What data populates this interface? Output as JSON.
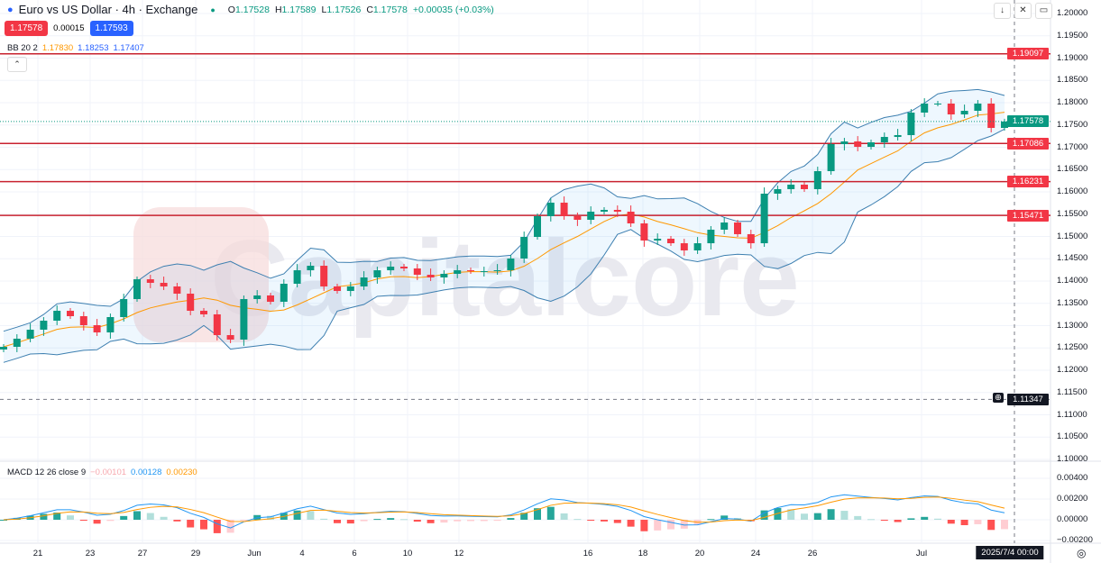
{
  "header": {
    "title": "Euro vs US Dollar · 4h · Exchange",
    "open_label": "O",
    "open": "1.17528",
    "high_label": "H",
    "high": "1.17589",
    "low_label": "L",
    "low": "1.17526",
    "close_label": "C",
    "close": "1.17578",
    "change": "+0.00035 (+0.03%)",
    "sell_price": "1.17578",
    "spread": "0.00015",
    "buy_price": "1.17593"
  },
  "bb_legend": {
    "name": "BB 20 2",
    "basis": "1.17830",
    "upper": "1.18253",
    "lower": "1.17407"
  },
  "macd_legend": {
    "name": "MACD 12 26 close 9",
    "histogram": "−0.00101",
    "macd": "0.00128",
    "signal": "0.00230"
  },
  "colors": {
    "up": "#089981",
    "down": "#f23645",
    "band": "#2962ff",
    "basis": "#ff9800",
    "level": "#c8222f"
  },
  "watermark": "Capitalcore",
  "chart_data": {
    "type": "candlestick",
    "price_axis": {
      "ylim": [
        1.1,
        1.2
      ],
      "ticks": [
        "1.20000",
        "1.19500",
        "1.19000",
        "1.18500",
        "1.18000",
        "1.17500",
        "1.17000",
        "1.16500",
        "1.16000",
        "1.15500",
        "1.15000",
        "1.14500",
        "1.14000",
        "1.13500",
        "1.13000",
        "1.12500",
        "1.12000",
        "1.11500",
        "1.11000",
        "1.10500",
        "1.10000"
      ]
    },
    "macd_axis": {
      "ylim": [
        -0.002,
        0.005
      ],
      "ticks": [
        "0.00400",
        "0.00200",
        "0.00000",
        "−0.00200"
      ]
    },
    "time_labels": [
      "21",
      "23",
      "27",
      "29",
      "Jun",
      "4",
      "6",
      "10",
      "12",
      "16",
      "18",
      "20",
      "24",
      "26",
      "Jul"
    ],
    "crosshair_time": "2025/7/4   00:00",
    "current_price": "1.17578",
    "crosshair_price": "1.11347",
    "levels": [
      "1.19097",
      "1.17086",
      "1.16231",
      "1.15471"
    ],
    "closes": [
      1.12525,
      1.12707,
      1.12909,
      1.13111,
      1.13333,
      1.13212,
      1.1301,
      1.12848,
      1.13192,
      1.13596,
      1.1404,
      1.1396,
      1.13879,
      1.13717,
      1.13333,
      1.13253,
      1.12788,
      1.12687,
      1.13596,
      1.13677,
      1.13535,
      1.13939,
      1.14242,
      1.14343,
      1.13879,
      1.13778,
      1.13879,
      1.14081,
      1.14242,
      1.14323,
      1.14283,
      1.14141,
      1.14081,
      1.14162,
      1.14242,
      1.14222,
      1.14222,
      1.14242,
      1.14505,
      1.1499,
      1.15455,
      1.15758,
      1.15455,
      1.15374,
      1.15556,
      1.15596,
      1.15556,
      1.15293,
      1.14909,
      1.14949,
      1.14848,
      1.14687,
      1.14848,
      1.15152,
      1.15313,
      1.15051,
      1.14848,
      1.1596,
      1.16061,
      1.16162,
      1.16061,
      1.16465,
      1.17071,
      1.17131,
      1.1701,
      1.17111,
      1.17232,
      1.17273,
      1.17778,
      1.1798,
      1.1798,
      1.17737,
      1.17818,
      1.1798,
      1.17434,
      1.17578
    ]
  }
}
